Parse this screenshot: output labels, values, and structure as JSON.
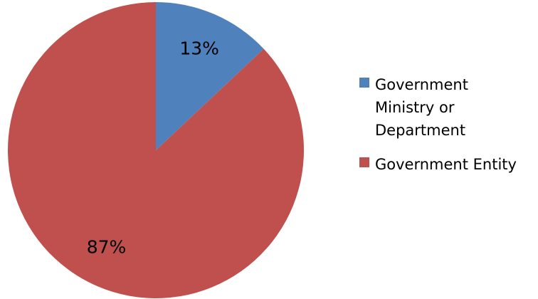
{
  "chart_data": {
    "type": "pie",
    "title": "",
    "slices": [
      {
        "name": "Government Ministry or Department",
        "label_lines": "Government\nMinistry or\nDepartment",
        "value": 13,
        "label": "13%",
        "color": "#4f81bd"
      },
      {
        "name": "Government Entity",
        "label_lines": "Government Entity",
        "value": 87,
        "label": "87%",
        "color": "#c0504d"
      }
    ],
    "start_angle_deg": 0,
    "direction": "clockwise",
    "legend_position": "right"
  }
}
